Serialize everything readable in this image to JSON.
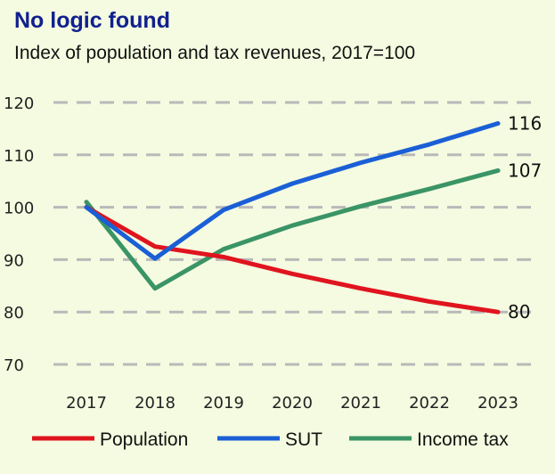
{
  "chart_data": {
    "type": "line",
    "title": "No logic found",
    "subtitle": "Index of population and tax revenues, 2017=100",
    "x": [
      "2017",
      "2018",
      "2019",
      "2020",
      "2021",
      "2022",
      "2023"
    ],
    "ylim": [
      70,
      120
    ],
    "yticks": [
      "120",
      "110",
      "100",
      "90",
      "80",
      "70"
    ],
    "grid": true,
    "legend_position": "bottom",
    "series": [
      {
        "name": "Population",
        "color": "#e0141e",
        "values": [
          100,
          92.5,
          90.5,
          87.3,
          84.5,
          82,
          80
        ],
        "end_label": "80"
      },
      {
        "name": "SUT",
        "color": "#1a5fd6",
        "values": [
          100,
          90.2,
          99.5,
          104.5,
          108.5,
          112,
          116
        ],
        "end_label": "116"
      },
      {
        "name": "Income tax",
        "color": "#3a9466",
        "values": [
          101,
          84.5,
          92,
          96.5,
          100.2,
          103.5,
          107
        ],
        "end_label": "107"
      }
    ]
  }
}
